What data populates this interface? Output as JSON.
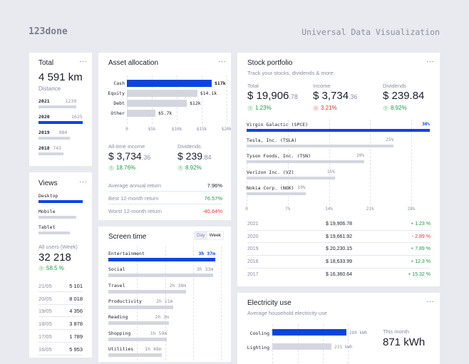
{
  "header": {
    "logo": "123done",
    "title": "Universal Data Visualization"
  },
  "colors": {
    "accent": "#0b45e0",
    "positive": "#1f9a4b",
    "negative": "#e53535",
    "bar": "#d4d6df"
  },
  "total": {
    "title": "Total",
    "value": "4 591 km",
    "caption": "Distance",
    "items": [
      {
        "year": "2021",
        "value": "1239",
        "frac": 0.86
      },
      {
        "year": "2020",
        "value": "1625",
        "frac": 1,
        "active": true
      },
      {
        "year": "2019",
        "value": "984",
        "frac": 0.71
      },
      {
        "year": "2018",
        "value": "743",
        "frac": 0.57
      }
    ]
  },
  "views": {
    "title": "Views",
    "items": [
      {
        "label": "Desktop",
        "frac": 1,
        "active": true
      },
      {
        "label": "Mobile",
        "frac": 0.86
      },
      {
        "label": "Tablet",
        "frac": 0.71
      }
    ],
    "caption": "All users (Week)",
    "value": "32 218",
    "change": "58.5 %",
    "rows": [
      {
        "date": "21/05",
        "value": "5 101"
      },
      {
        "date": "20/05",
        "value": "8 018"
      },
      {
        "date": "19/05",
        "value": "4 356"
      },
      {
        "date": "18/05",
        "value": "3 878"
      },
      {
        "date": "17/05",
        "value": "1 789"
      },
      {
        "date": "16/05",
        "value": "5 953"
      }
    ]
  },
  "asset": {
    "title": "Asset allocation",
    "chart_data": {
      "type": "bar",
      "categories": [
        "Cash",
        "Equity",
        "Debt",
        "Other"
      ],
      "values": [
        17,
        14.1,
        12,
        5.7
      ],
      "labels": [
        "$17k",
        "$14.1k",
        "$12k",
        "$5.7k"
      ],
      "ticks": [
        "0",
        "$5k",
        "$10k",
        "$15k",
        "$20k"
      ],
      "xlim": [
        0,
        20
      ]
    },
    "income": {
      "label": "All-time income",
      "main": "$ 3,734",
      "cents": ".36",
      "change": "18.76%"
    },
    "dividends": {
      "label": "Dividends",
      "main": "$ 239",
      "cents": ".84",
      "change": "8.92%"
    },
    "returns": [
      {
        "label": "Average annual return",
        "value": "7.96%",
        "tone": ""
      },
      {
        "label": "Best 12-month return",
        "value": "76.57%",
        "tone": "g"
      },
      {
        "label": "Worst 12-month return",
        "value": "-40.64%",
        "tone": "r"
      }
    ]
  },
  "screen": {
    "title": "Screen time",
    "tabs": [
      "Day",
      "Week"
    ],
    "chart_data": {
      "type": "bar",
      "categories": [
        "Entertainment",
        "Social",
        "Travel",
        "Productivity",
        "Reading",
        "Shopping",
        "Utilities"
      ],
      "values": [
        217,
        213,
        158,
        131,
        123,
        119,
        108
      ],
      "labels": [
        "3h 37m",
        "3h 33m",
        "2h 38m",
        "2h 11m",
        "2h 3m",
        "1h 59m",
        "1h 48m"
      ]
    }
  },
  "stock": {
    "title": "Stock portfolio",
    "subtitle": "Track your stocks, dividends & more.",
    "stats": [
      {
        "label": "Total",
        "main": "$ 19,906",
        "cents": ".78",
        "change": "1.23%",
        "tone": "g",
        "arrow": "↑"
      },
      {
        "label": "Income",
        "main": "$ 3,734",
        "cents": ".36",
        "change": "3.21%",
        "tone": "r",
        "arrow": "↓"
      },
      {
        "label": "Dividends",
        "main": "$ 239.84",
        "cents": "",
        "change": "8.92%",
        "tone": "g",
        "arrow": "↑"
      }
    ],
    "chart_data": {
      "type": "bar",
      "categories": [
        "Virgin Galactic (SPCE)",
        "Tesla, Inc. (TSLA)",
        "Tyson Foods, Inc. (TSN)",
        "Verizon Inc. (VZ)",
        "Nokia Corp. (NOK)"
      ],
      "values": [
        30,
        25,
        20,
        15,
        10
      ],
      "labels": [
        "30%",
        "25%",
        "20%",
        "15%",
        "10%"
      ],
      "ticks": [
        "0",
        "7%",
        "14%",
        "21%",
        "28%"
      ]
    },
    "rows": [
      {
        "year": "2021",
        "value": "$ 19,906.78",
        "change": "+ 1.23 %",
        "tone": "g"
      },
      {
        "year": "2020",
        "value": "$ 19,661.92",
        "change": "- 2.89 %",
        "tone": "r"
      },
      {
        "year": "2019",
        "value": "$ 20,230.15",
        "change": "+ 7.89 %",
        "tone": "g"
      },
      {
        "year": "2018",
        "value": "$ 18,633.99",
        "change": "+ 12.3 %",
        "tone": "g"
      },
      {
        "year": "2017",
        "value": "$ 16,360.64",
        "change": "+ 15.32 %",
        "tone": "g"
      }
    ]
  },
  "electricity": {
    "title": "Electricity use",
    "subtitle": "Average household electricity use",
    "chart_data": {
      "type": "bar",
      "categories": [
        "Cooling",
        "Lighting"
      ],
      "values": [
        289,
        231
      ],
      "labels": [
        "289 kWh",
        "231 kWh"
      ]
    },
    "month_label": "This month",
    "month_value": "871 kWh"
  }
}
